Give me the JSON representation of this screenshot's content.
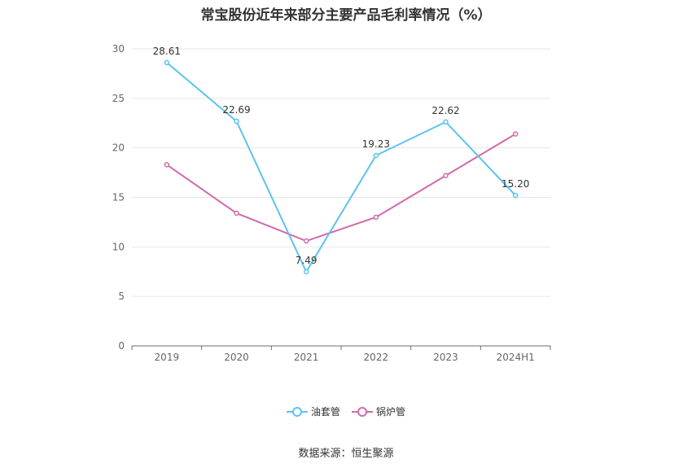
{
  "chart_data": {
    "type": "line",
    "title": "常宝股份近年来部分主要产品毛利率情况（%）",
    "categories": [
      "2019",
      "2020",
      "2021",
      "2022",
      "2023",
      "2024H1"
    ],
    "ylim": [
      0,
      30
    ],
    "yticks": [
      "0",
      "5",
      "10",
      "15",
      "20",
      "25",
      "30"
    ],
    "grid": true,
    "legend_position": "bottom",
    "series": [
      {
        "name": "油套管",
        "color": "#5bc3ef",
        "values": [
          28.61,
          22.69,
          7.49,
          19.23,
          22.62,
          15.2
        ],
        "labels": [
          "28.61",
          "22.69",
          "7.49",
          "19.23",
          "22.62",
          "15.20"
        ]
      },
      {
        "name": "锅炉管",
        "color": "#d36aaa",
        "values": [
          18.3,
          13.4,
          10.6,
          13.0,
          17.2,
          21.4
        ]
      }
    ]
  },
  "source": "数据来源：恒生聚源"
}
